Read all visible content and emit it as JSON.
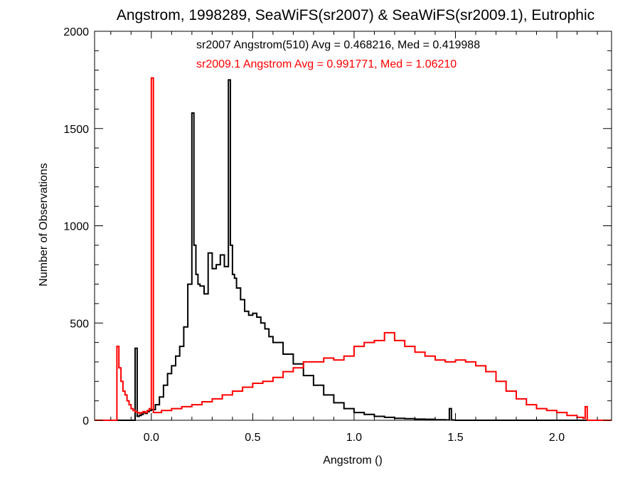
{
  "chart_data": {
    "type": "line",
    "title": "Angstrom, 1998289, SeaWiFS(sr2007) & SeaWiFS(sr2009.1), Eutrophic",
    "xlabel": "Angstrom ()",
    "ylabel": "Number of Observations",
    "xlim": [
      -0.28,
      2.27
    ],
    "ylim": [
      0,
      2000
    ],
    "xticks": [
      {
        "value": 0.0,
        "label": "0.0"
      },
      {
        "value": 0.5,
        "label": "0.5"
      },
      {
        "value": 1.0,
        "label": "1.0"
      },
      {
        "value": 1.5,
        "label": "1.5"
      },
      {
        "value": 2.0,
        "label": "2.0"
      }
    ],
    "yticks": [
      {
        "value": 0,
        "label": "0"
      },
      {
        "value": 500,
        "label": "500"
      },
      {
        "value": 1000,
        "label": "1000"
      },
      {
        "value": 1500,
        "label": "1500"
      },
      {
        "value": 2000,
        "label": "2000"
      }
    ],
    "grid": false,
    "annotations": [
      {
        "text": "sr2007 Angstrom(510) Avg = 0.468216, Med = 0.419988",
        "color": "#000000"
      },
      {
        "text": "sr2009.1 Angstrom Avg = 0.991771, Med = 1.06210",
        "color": "#ff0000"
      }
    ],
    "series": [
      {
        "color": "#000000",
        "x": [
          -0.28,
          -0.09,
          -0.08,
          -0.07,
          -0.06,
          -0.05,
          -0.04,
          -0.03,
          -0.02,
          -0.01,
          0.0,
          0.02,
          0.04,
          0.06,
          0.08,
          0.1,
          0.12,
          0.14,
          0.16,
          0.18,
          0.2,
          0.21,
          0.22,
          0.23,
          0.24,
          0.26,
          0.28,
          0.3,
          0.32,
          0.34,
          0.36,
          0.38,
          0.39,
          0.4,
          0.41,
          0.42,
          0.44,
          0.46,
          0.48,
          0.5,
          0.52,
          0.54,
          0.56,
          0.58,
          0.6,
          0.65,
          0.7,
          0.75,
          0.8,
          0.85,
          0.9,
          0.95,
          1.0,
          1.05,
          1.1,
          1.15,
          1.2,
          1.25,
          1.3,
          1.35,
          1.4,
          1.45,
          1.47,
          1.48,
          1.49,
          1.5,
          1.6,
          1.7,
          1.8,
          2.27
        ],
        "values": [
          0,
          0,
          370,
          20,
          25,
          30,
          40,
          35,
          45,
          50,
          55,
          80,
          120,
          180,
          240,
          280,
          330,
          380,
          480,
          700,
          1580,
          900,
          750,
          700,
          690,
          650,
          860,
          780,
          800,
          850,
          790,
          1750,
          900,
          750,
          730,
          680,
          620,
          560,
          540,
          550,
          530,
          500,
          470,
          430,
          400,
          340,
          290,
          230,
          180,
          130,
          90,
          60,
          40,
          30,
          20,
          15,
          10,
          8,
          6,
          5,
          3,
          2,
          60,
          2,
          1,
          0,
          0,
          0,
          0,
          0
        ]
      },
      {
        "color": "#ff0000",
        "x": [
          -0.28,
          -0.17,
          -0.16,
          -0.15,
          -0.14,
          -0.13,
          -0.12,
          -0.11,
          -0.1,
          -0.09,
          -0.08,
          -0.07,
          -0.06,
          -0.05,
          -0.04,
          -0.03,
          -0.02,
          -0.01,
          0.0,
          0.01,
          0.05,
          0.1,
          0.15,
          0.2,
          0.25,
          0.3,
          0.35,
          0.4,
          0.45,
          0.5,
          0.55,
          0.6,
          0.65,
          0.7,
          0.75,
          0.8,
          0.85,
          0.9,
          0.95,
          1.0,
          1.05,
          1.1,
          1.15,
          1.2,
          1.25,
          1.3,
          1.35,
          1.4,
          1.45,
          1.5,
          1.55,
          1.6,
          1.65,
          1.7,
          1.75,
          1.8,
          1.85,
          1.9,
          1.95,
          2.0,
          2.05,
          2.1,
          2.13,
          2.14,
          2.15,
          2.27
        ],
        "values": [
          0,
          380,
          270,
          200,
          150,
          130,
          100,
          80,
          60,
          50,
          45,
          40,
          35,
          40,
          45,
          40,
          50,
          60,
          1760,
          40,
          50,
          60,
          70,
          80,
          95,
          110,
          130,
          150,
          170,
          190,
          200,
          220,
          250,
          270,
          300,
          300,
          320,
          310,
          330,
          380,
          400,
          410,
          450,
          410,
          380,
          350,
          330,
          310,
          300,
          310,
          300,
          280,
          250,
          200,
          150,
          110,
          80,
          60,
          50,
          40,
          25,
          15,
          10,
          70,
          0,
          0
        ]
      }
    ]
  }
}
